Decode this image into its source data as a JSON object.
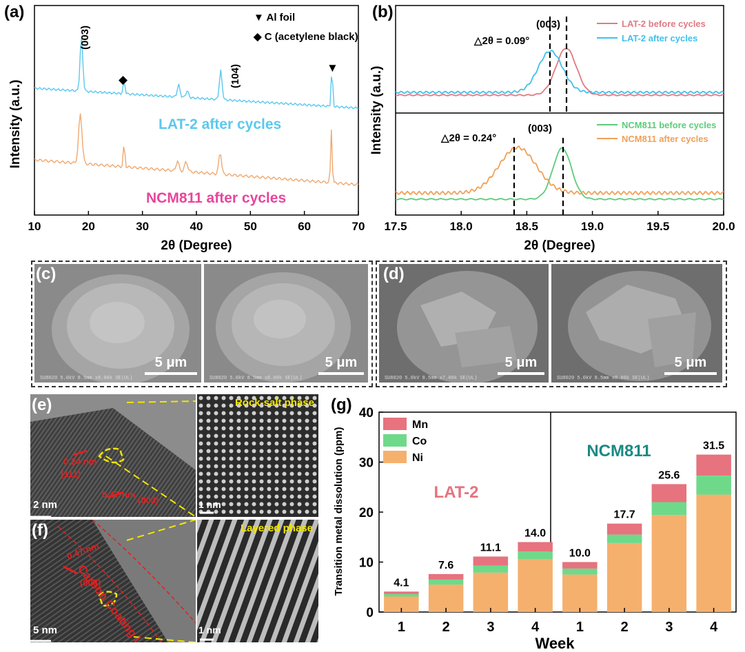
{
  "panel_a": {
    "label": "(a)",
    "legend": [
      {
        "symbol": "▼",
        "text": "Al foil"
      },
      {
        "symbol": "◆",
        "text": "C (acetylene black)"
      }
    ],
    "peak_labels": [
      "(003)",
      "(104)"
    ],
    "marks": {
      "diamond": "◆",
      "triangle": "▼"
    },
    "curve_labels": [
      "LAT-2 after cycles",
      "NCM811 after cycles"
    ],
    "ylabel": "Intensity (a.u.)",
    "xlabel": "2θ (Degree)",
    "xticks": [
      "10",
      "20",
      "30",
      "40",
      "50",
      "60",
      "70"
    ],
    "colors": {
      "lat2": "#5bc8ee",
      "ncm811": "#f0a870",
      "label_lat2": "#5bc8ee",
      "label_ncm": "#e8459c"
    }
  },
  "panel_b": {
    "label": "(b)",
    "top": {
      "peak": "(003)",
      "delta": "△2θ = 0.09°",
      "legend": [
        "LAT-2 before cycles",
        "LAT-2 after cycles"
      ],
      "colors": [
        "#e07a82",
        "#3fc0ec"
      ]
    },
    "bottom": {
      "peak": "(003)",
      "delta": "△2θ = 0.24°",
      "legend": [
        "NCM811 before cycles",
        "NCM811 after cycles"
      ],
      "colors": [
        "#5ccc7a",
        "#f0a058"
      ]
    },
    "ylabel": "Intensity (a.u.)",
    "xlabel": "2θ (Degree)",
    "xticks": [
      "17.5",
      "18.0",
      "18.5",
      "19.0",
      "19.5",
      "20.0"
    ]
  },
  "panel_c": {
    "label": "(c)",
    "scales": [
      "5 μm",
      "5 μm"
    ],
    "meta": [
      "SU8020 5.0kV 8.5mm x8.00k SE(UL)",
      "SU8020 5.0kV 8.5mm x8.00k SE(UL)"
    ]
  },
  "panel_d": {
    "label": "(d)",
    "scales": [
      "5 μm",
      "5 μm"
    ],
    "meta": [
      "SU8020 5.0kV 8.5mm x7.00k SE(UL)",
      "SU8020 5.0kV 8.5mm x8.00k SE(UL)"
    ]
  },
  "panel_e": {
    "label": "(e)",
    "annotations": [
      "0.24 nm",
      "(111)",
      "0.47 nm",
      "(003)"
    ],
    "scale": "2 nm",
    "inset_title": "Rock-salt phase",
    "inset_scale": "1 nm"
  },
  "panel_f": {
    "label": "(f)",
    "annotations": [
      "0.47 nm",
      "(003)",
      "Carbon Coating Layer"
    ],
    "scale": "5 nm",
    "inset_title": "Layered phase",
    "inset_scale": "1 nm"
  },
  "chart_data": {
    "type": "bar",
    "label": "(g)",
    "stacked": true,
    "groups": [
      "LAT-2",
      "NCM811"
    ],
    "categories": [
      "1",
      "2",
      "3",
      "4",
      "1",
      "2",
      "3",
      "4"
    ],
    "series": [
      {
        "name": "Ni",
        "color": "#f5b06e",
        "values": [
          3.1,
          5.5,
          7.9,
          10.6,
          7.5,
          13.8,
          19.4,
          23.5
        ]
      },
      {
        "name": "Co",
        "color": "#6fd98a",
        "values": [
          0.5,
          1.0,
          1.4,
          1.5,
          1.2,
          1.7,
          2.6,
          3.8
        ]
      },
      {
        "name": "Mn",
        "color": "#e6737e",
        "values": [
          0.5,
          1.1,
          1.8,
          1.9,
          1.3,
          2.2,
          3.6,
          4.2
        ]
      }
    ],
    "totals": [
      "4.1",
      "7.6",
      "11.1",
      "14.0",
      "10.0",
      "17.7",
      "25.6",
      "31.5"
    ],
    "legend_order": [
      "Mn",
      "Co",
      "Ni"
    ],
    "group_labels": {
      "left": "LAT-2",
      "right": "NCM811"
    },
    "group_colors": {
      "left": "#e6737e",
      "right": "#1a8a84"
    },
    "xlabel": "Week",
    "ylabel": "Transition metal dissolution (ppm)",
    "ylim": [
      0,
      40
    ],
    "yticks": [
      "0",
      "10",
      "20",
      "30",
      "40"
    ]
  }
}
